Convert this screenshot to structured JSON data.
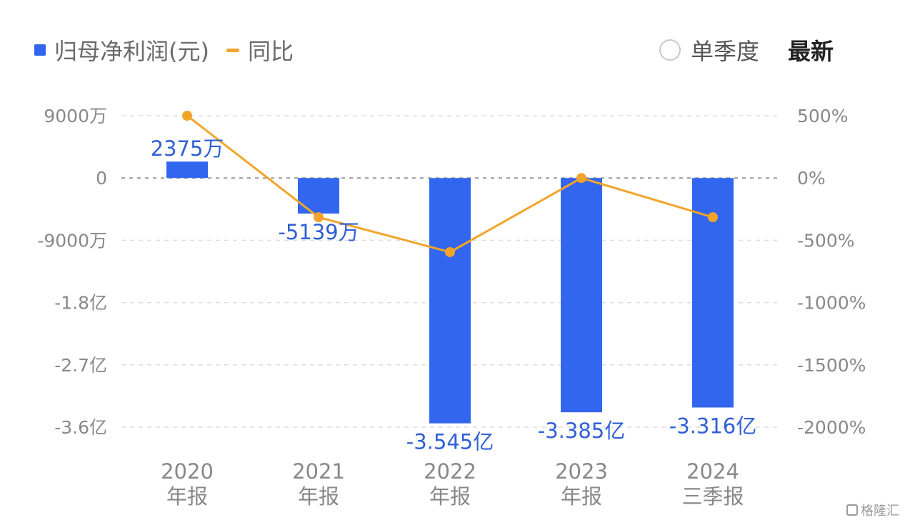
{
  "legend": {
    "bar_label": "归母净利润(元)",
    "line_label": "同比"
  },
  "controls": {
    "single_quarter": "单季度",
    "latest": "最新"
  },
  "watermark": "格隆汇",
  "colors": {
    "bar": "#3366ee",
    "line": "#f2a42a",
    "grid": "#dddddd",
    "zero_line": "#999999",
    "tick_text": "#888888",
    "data_label": "#2f5fd6"
  },
  "chart_data": {
    "type": "bar",
    "categories": [
      [
        "2020",
        "年报"
      ],
      [
        "2021",
        "年报"
      ],
      [
        "2022",
        "年报"
      ],
      [
        "2023",
        "年报"
      ],
      [
        "2024",
        "三季报"
      ]
    ],
    "series": [
      {
        "name": "归母净利润(元)",
        "type": "bar",
        "axis": "left",
        "values": [
          23750000,
          -51390000,
          -354500000,
          -338500000,
          -331600000
        ],
        "labels": [
          "2375万",
          "-5139万",
          "-3.545亿",
          "-3.385亿",
          "-3.316亿"
        ]
      },
      {
        "name": "同比",
        "type": "line",
        "axis": "right",
        "values": [
          500,
          -315,
          -595,
          0,
          -315
        ]
      }
    ],
    "left_axis": {
      "ylim": [
        -360000000,
        90000000
      ],
      "ticks": [
        90000000,
        0,
        -90000000,
        -180000000,
        -270000000,
        -360000000
      ],
      "tick_labels": [
        "9000万",
        "0",
        "-9000万",
        "-1.8亿",
        "-2.7亿",
        "-3.6亿"
      ]
    },
    "right_axis": {
      "ylim": [
        -2000,
        500
      ],
      "ticks": [
        500,
        0,
        -500,
        -1000,
        -1500,
        -2000
      ],
      "tick_labels": [
        "500%",
        "0%",
        "-500%",
        "-1000%",
        "-1500%",
        "-2000%"
      ]
    },
    "grid": true,
    "legend_position": "top-left"
  }
}
